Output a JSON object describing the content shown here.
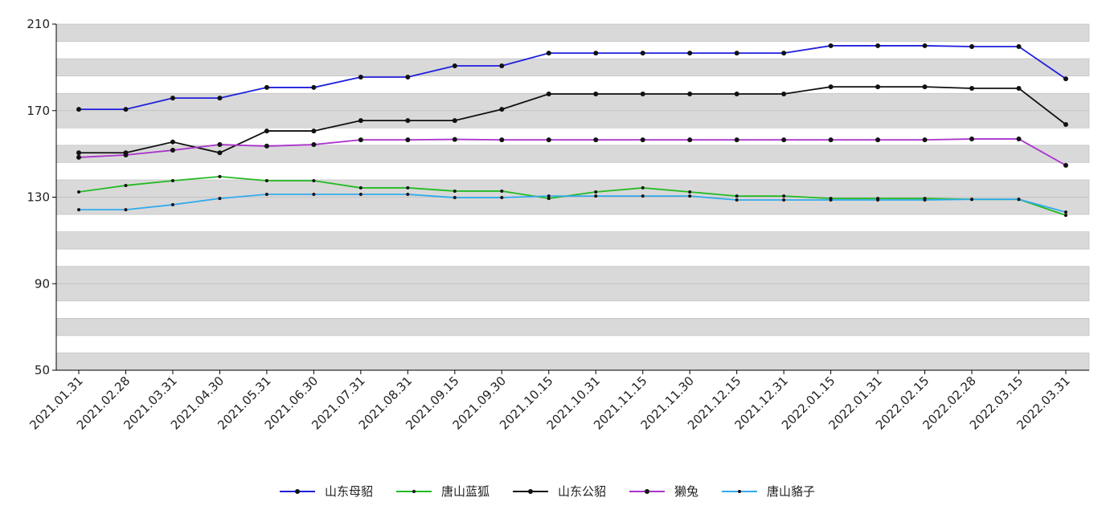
{
  "chart_data": {
    "type": "line",
    "categories": [
      "2021.01.31",
      "2021.02.28",
      "2021.03.31",
      "2021.04.30",
      "2021.05.31",
      "2021.06.30",
      "2021.07.31",
      "2021.08.31",
      "2021.09.15",
      "2021.09.30",
      "2021.10.15",
      "2021.10.31",
      "2021.11.15",
      "2021.11.30",
      "2021.12.15",
      "2021.12.31",
      "2022.01.15",
      "2022.01.31",
      "2022.02.15",
      "2022.02.28",
      "2022.03.15",
      "2022.03.31"
    ],
    "series": [
      {
        "name": "山东母貂",
        "color": "#1f1fdd",
        "values": [
          170.6,
          170.6,
          175.8,
          175.8,
          180.7,
          180.7,
          185.5,
          185.5,
          190.7,
          190.7,
          196.6,
          196.6,
          196.6,
          196.6,
          196.6,
          196.6,
          200,
          200,
          200,
          199.6,
          199.6,
          184.7
        ]
      },
      {
        "name": "唐山蓝狐",
        "color": "#22bb22",
        "values": [
          132.4,
          135.4,
          137.6,
          139.5,
          137.6,
          137.6,
          134.3,
          134.3,
          132.8,
          132.8,
          129.4,
          132.4,
          134.3,
          132.4,
          130.5,
          130.5,
          129.4,
          129.4,
          129.4,
          129,
          129,
          121.6
        ]
      },
      {
        "name": "山东公貂",
        "color": "#111111",
        "values": [
          150.5,
          150.5,
          155.5,
          150.5,
          160.6,
          160.6,
          165.4,
          165.4,
          165.4,
          170.6,
          177.7,
          177.7,
          177.7,
          177.7,
          177.7,
          177.7,
          181,
          181,
          181,
          180.3,
          180.3,
          163.6
        ]
      },
      {
        "name": "獭兔",
        "color": "#aa33cc",
        "values": [
          148.4,
          149.5,
          151.7,
          154.3,
          153.6,
          154.3,
          156.5,
          156.5,
          156.7,
          156.5,
          156.5,
          156.5,
          156.5,
          156.5,
          156.5,
          156.5,
          156.5,
          156.5,
          156.5,
          156.9,
          156.9,
          144.7
        ]
      },
      {
        "name": "唐山貉子",
        "color": "#33aaee",
        "values": [
          124.2,
          124.2,
          126.5,
          129.4,
          131.3,
          131.3,
          131.3,
          131.3,
          129.8,
          129.8,
          130.5,
          130.5,
          130.5,
          130.5,
          128.7,
          128.7,
          128.7,
          128.7,
          128.7,
          129,
          129,
          123.1
        ]
      }
    ],
    "ylim": [
      50,
      210
    ],
    "yticks": [
      50,
      90,
      130,
      170,
      210
    ],
    "grid": true,
    "legend": "bottom"
  }
}
